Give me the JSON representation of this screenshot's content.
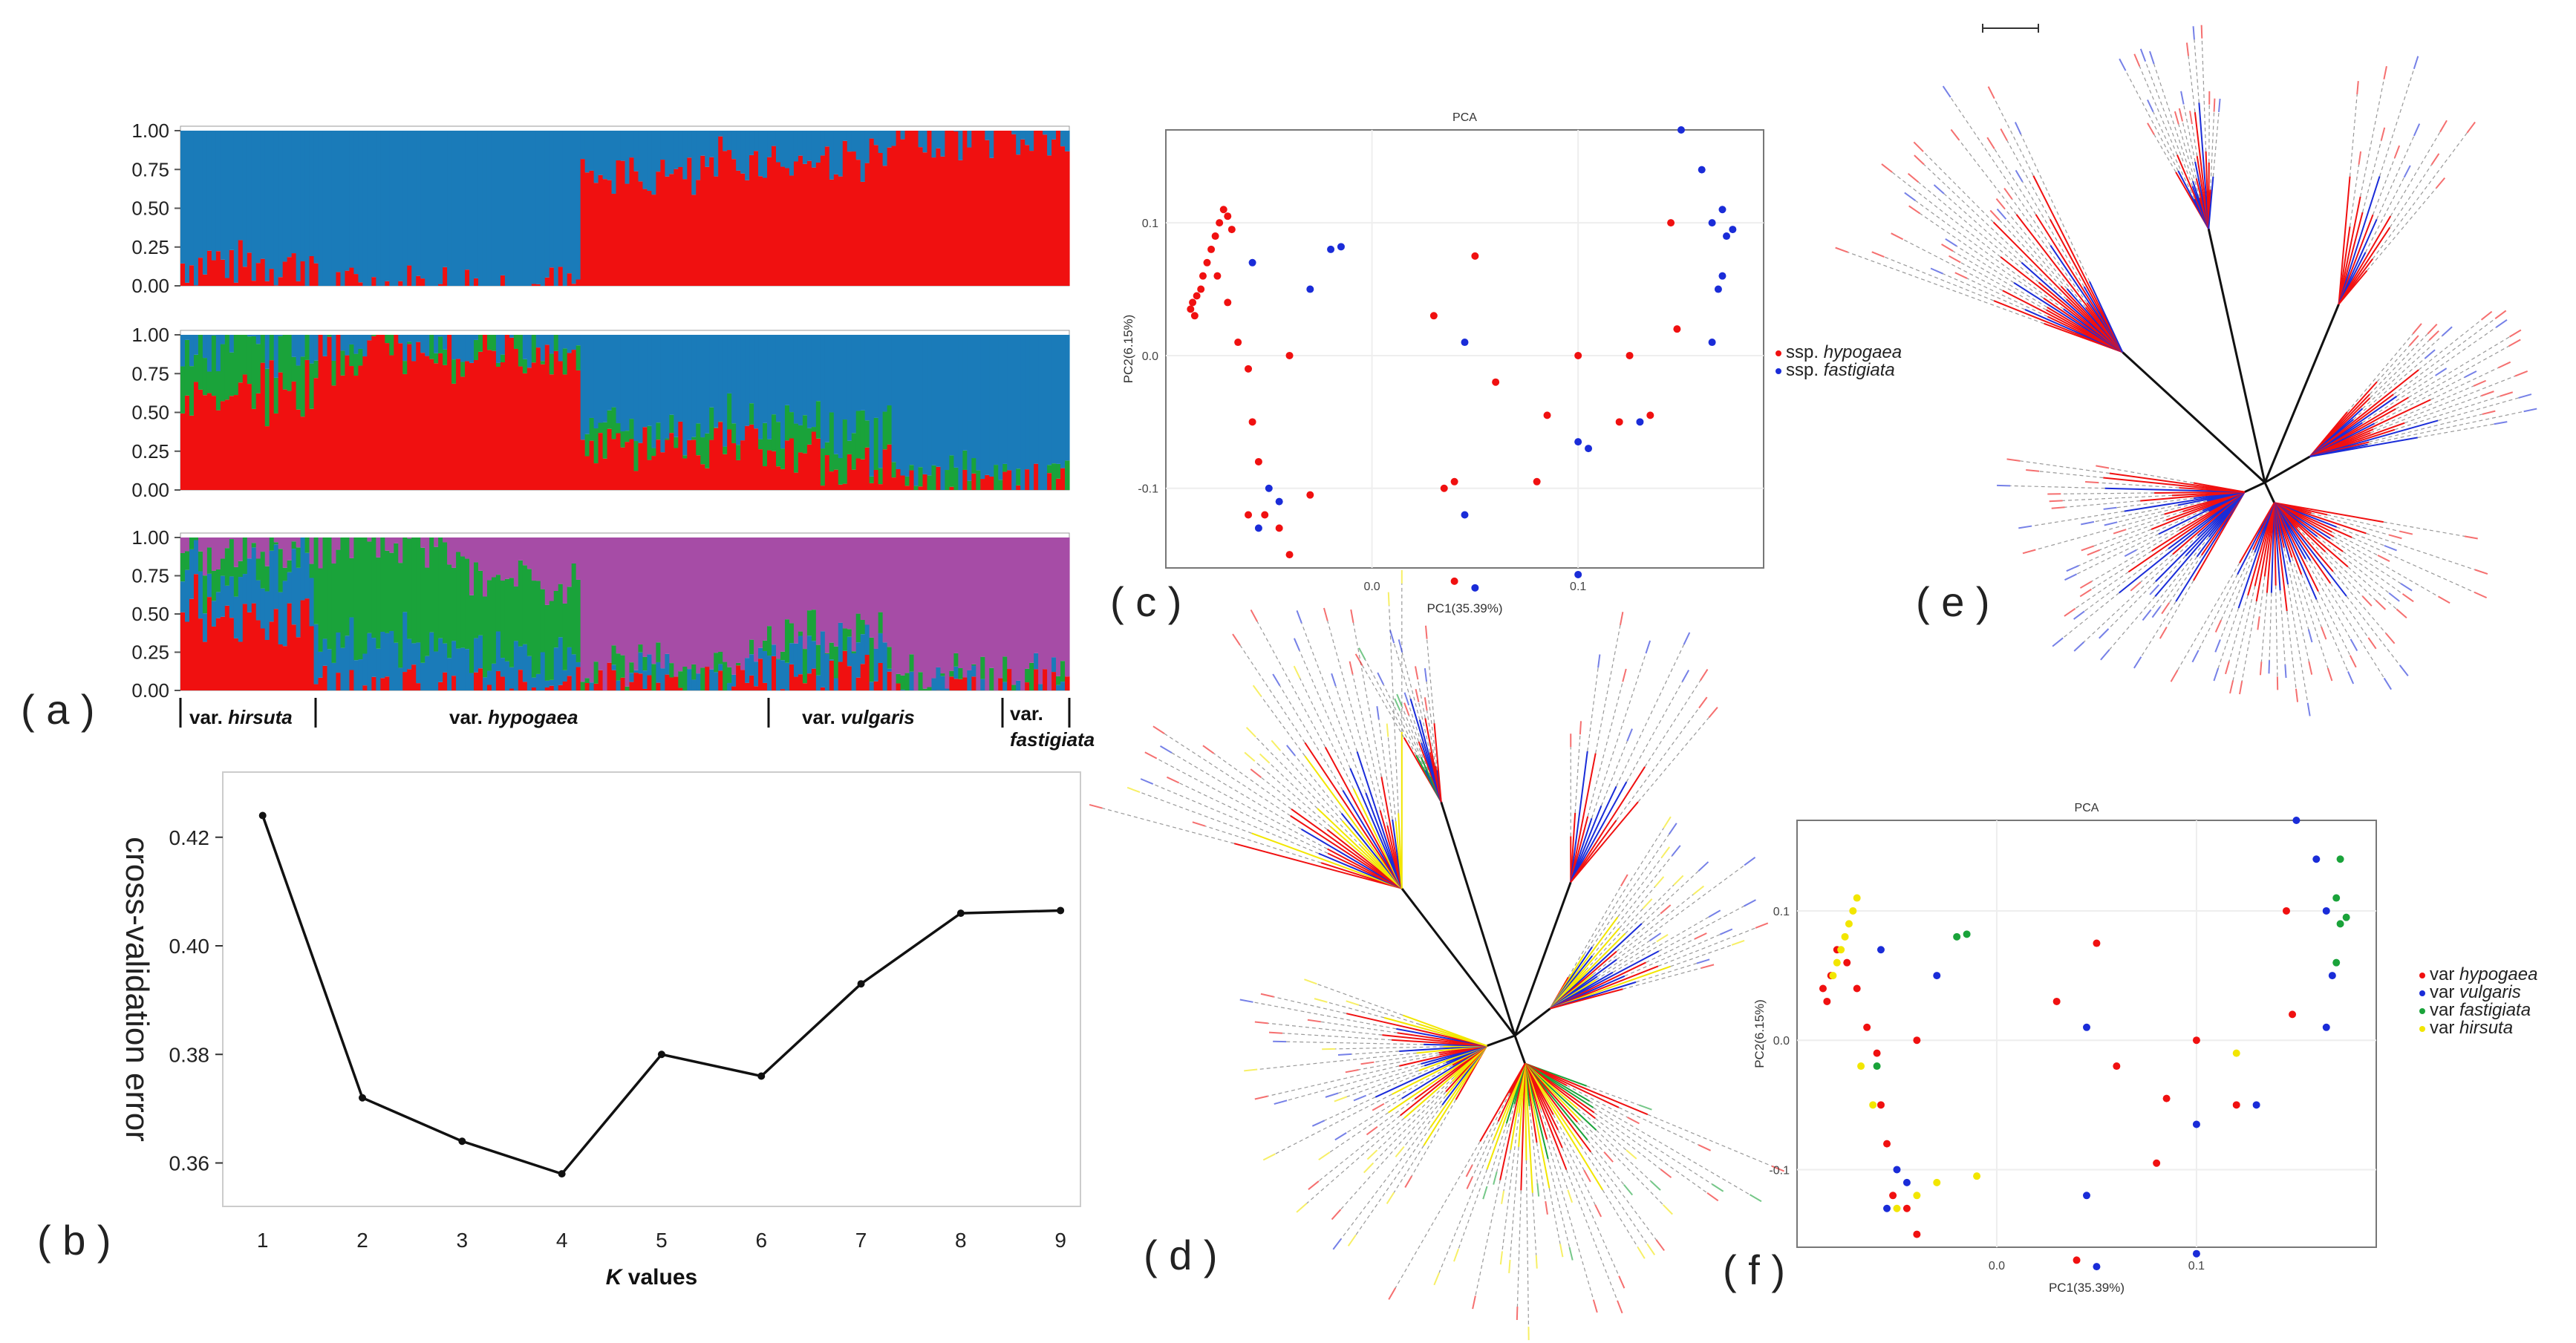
{
  "panel_labels": {
    "a": "( a )",
    "b": "( b )",
    "c": "( c )",
    "d": "( d )",
    "e": "( e )",
    "f": "( f )"
  },
  "colors": {
    "red": "#f01010",
    "blue": "#1a7bb9",
    "green": "#1aa33a",
    "purple": "#a64ca6",
    "yellow": "#f2e600",
    "dot_blue": "#1a2cd8"
  },
  "structure_groups": [
    {
      "prefix": "var. ",
      "name": "hirsuta"
    },
    {
      "prefix": "var. ",
      "name": "hypogaea"
    },
    {
      "prefix": "var. ",
      "name": "vulgaris"
    },
    {
      "prefix": "var.",
      "name": "fastigiata"
    }
  ],
  "chart_data": [
    {
      "type": "stacked_bar",
      "panel": "a",
      "k": 2,
      "yticks": [
        "0.00",
        "0.25",
        "0.50",
        "0.75",
        "1.00"
      ],
      "ylim": [
        0,
        1
      ],
      "components": [
        "red",
        "blue"
      ],
      "segments": [
        {
          "from": 0,
          "to": 30,
          "red": 0.15,
          "blue": 0.85
        },
        {
          "from": 30,
          "to": 90,
          "red": 0.0,
          "blue": 1.0
        },
        {
          "from": 90,
          "to": 120,
          "red": 0.7,
          "blue": 0.3
        },
        {
          "from": 120,
          "to": 160,
          "red": 0.8,
          "blue": 0.2
        },
        {
          "from": 160,
          "to": 200,
          "red": 0.95,
          "blue": 0.05
        }
      ]
    },
    {
      "type": "stacked_bar",
      "panel": "a",
      "k": 3,
      "yticks": [
        "0.00",
        "0.25",
        "0.50",
        "0.75",
        "1.00"
      ],
      "ylim": [
        0,
        1
      ],
      "components": [
        "red",
        "green",
        "blue"
      ],
      "segments": [
        {
          "from": 0,
          "to": 30,
          "red": 0.6,
          "green": 0.3,
          "blue": 0.1
        },
        {
          "from": 30,
          "to": 90,
          "red": 0.9,
          "green": 0.05,
          "blue": 0.05
        },
        {
          "from": 90,
          "to": 130,
          "red": 0.3,
          "green": 0.1,
          "blue": 0.6
        },
        {
          "from": 130,
          "to": 160,
          "red": 0.2,
          "green": 0.2,
          "blue": 0.6
        },
        {
          "from": 160,
          "to": 200,
          "red": 0.0,
          "green": 0.05,
          "blue": 0.95
        }
      ]
    },
    {
      "type": "stacked_bar",
      "panel": "a",
      "k": 4,
      "yticks": [
        "0.00",
        "0.25",
        "0.50",
        "0.75",
        "1.00"
      ],
      "ylim": [
        0,
        1
      ],
      "components": [
        "red",
        "blue",
        "green",
        "purple"
      ],
      "segments": [
        {
          "from": 0,
          "to": 30,
          "red": 0.45,
          "blue": 0.3,
          "green": 0.15,
          "purple": 0.1
        },
        {
          "from": 30,
          "to": 65,
          "red": 0.0,
          "blue": 0.3,
          "green": 0.65,
          "purple": 0.05
        },
        {
          "from": 65,
          "to": 90,
          "red": 0.0,
          "blue": 0.2,
          "green": 0.5,
          "purple": 0.3
        },
        {
          "from": 90,
          "to": 130,
          "red": 0.0,
          "blue": 0.05,
          "green": 0.05,
          "purple": 0.9
        },
        {
          "from": 130,
          "to": 160,
          "red": 0.1,
          "blue": 0.15,
          "green": 0.1,
          "purple": 0.65
        },
        {
          "from": 160,
          "to": 200,
          "red": 0.0,
          "blue": 0.0,
          "green": 0.02,
          "purple": 0.98
        }
      ]
    },
    {
      "type": "line",
      "panel": "b",
      "x": [
        1,
        2,
        3,
        4,
        5,
        6,
        7,
        8,
        9
      ],
      "y": [
        0.424,
        0.372,
        0.364,
        0.358,
        0.38,
        0.376,
        0.393,
        0.406,
        0.4065
      ],
      "xlim": [
        0.6,
        9.2
      ],
      "ylim": [
        0.352,
        0.432
      ],
      "xticks": [
        "1",
        "2",
        "3",
        "4",
        "5",
        "6",
        "7",
        "8",
        "9"
      ],
      "yticks": [
        {
          "v": 0.36,
          "label": "0.36"
        },
        {
          "v": 0.38,
          "label": "0.38"
        },
        {
          "v": 0.4,
          "label": "0.40"
        },
        {
          "v": 0.42,
          "label": "0.42"
        }
      ],
      "xlabel_italic": "K",
      "xlabel_rest": " values",
      "ylabel": "cross-validation error"
    },
    {
      "type": "scatter",
      "panel": "c",
      "title": "PCA",
      "xlabel": "PC1(35.39%)",
      "ylabel": "PC2(6.15%)",
      "xlim": [
        -0.1,
        0.19
      ],
      "ylim": [
        -0.16,
        0.17
      ],
      "xticks": [
        {
          "v": 0.0,
          "label": "0.0"
        },
        {
          "v": 0.1,
          "label": "0.1"
        }
      ],
      "yticks": [
        {
          "v": 0.1,
          "label": "0.1"
        },
        {
          "v": 0.0,
          "label": "0.0"
        },
        {
          "v": -0.1,
          "label": "-0.1"
        }
      ],
      "legend": [
        {
          "color": "red",
          "prefix": "ssp. ",
          "name": "hypogaea"
        },
        {
          "color": "dot_blue",
          "prefix": "ssp. ",
          "name": "fastigiata"
        }
      ],
      "series": [
        {
          "name": "ssp. hypogaea",
          "color": "red",
          "points": [
            [
              -0.087,
              0.04
            ],
            [
              -0.088,
              0.035
            ],
            [
              -0.086,
              0.03
            ],
            [
              -0.085,
              0.045
            ],
            [
              -0.083,
              0.05
            ],
            [
              -0.082,
              0.06
            ],
            [
              -0.08,
              0.07
            ],
            [
              -0.078,
              0.08
            ],
            [
              -0.076,
              0.09
            ],
            [
              -0.074,
              0.1
            ],
            [
              -0.072,
              0.11
            ],
            [
              -0.07,
              0.105
            ],
            [
              -0.068,
              0.095
            ],
            [
              -0.075,
              0.06
            ],
            [
              -0.07,
              0.04
            ],
            [
              -0.065,
              0.01
            ],
            [
              -0.06,
              -0.01
            ],
            [
              -0.058,
              -0.05
            ],
            [
              -0.055,
              -0.08
            ],
            [
              -0.06,
              -0.12
            ],
            [
              -0.052,
              -0.12
            ],
            [
              -0.045,
              -0.13
            ],
            [
              -0.04,
              -0.15
            ],
            [
              -0.03,
              -0.105
            ],
            [
              -0.04,
              0.0
            ],
            [
              0.03,
              0.03
            ],
            [
              0.05,
              0.075
            ],
            [
              0.06,
              -0.02
            ],
            [
              0.04,
              -0.17
            ],
            [
              0.08,
              -0.095
            ],
            [
              0.085,
              -0.045
            ],
            [
              0.1,
              0.0
            ],
            [
              0.12,
              -0.05
            ],
            [
              0.125,
              0.0
            ],
            [
              0.135,
              -0.045
            ],
            [
              0.145,
              0.1
            ],
            [
              0.148,
              0.02
            ],
            [
              0.035,
              -0.1
            ],
            [
              0.04,
              -0.095
            ]
          ]
        },
        {
          "name": "ssp. fastigiata",
          "color": "dot_blue",
          "points": [
            [
              -0.058,
              0.07
            ],
            [
              -0.055,
              -0.13
            ],
            [
              -0.05,
              -0.1
            ],
            [
              -0.045,
              -0.11
            ],
            [
              -0.03,
              0.05
            ],
            [
              -0.02,
              0.08
            ],
            [
              -0.015,
              0.082
            ],
            [
              0.045,
              -0.12
            ],
            [
              0.045,
              0.01
            ],
            [
              0.05,
              -0.175
            ],
            [
              0.1,
              -0.065
            ],
            [
              0.1,
              -0.165
            ],
            [
              0.105,
              -0.07
            ],
            [
              0.13,
              -0.05
            ],
            [
              0.15,
              0.17
            ],
            [
              0.16,
              0.14
            ],
            [
              0.165,
              0.1
            ],
            [
              0.17,
              0.11
            ],
            [
              0.172,
              0.09
            ],
            [
              0.168,
              0.05
            ],
            [
              0.165,
              0.01
            ],
            [
              0.17,
              0.06
            ],
            [
              0.175,
              0.095
            ]
          ]
        }
      ]
    },
    {
      "type": "tree",
      "panel": "d",
      "description_colors": [
        "red",
        "dot_blue",
        "green",
        "yellow"
      ]
    },
    {
      "type": "tree",
      "panel": "e",
      "description_colors": [
        "red",
        "dot_blue"
      ]
    },
    {
      "type": "scatter",
      "panel": "f",
      "title": "PCA",
      "xlabel": "PC1(35.39%)",
      "ylabel": "PC2(6.15%)",
      "xlim": [
        -0.1,
        0.19
      ],
      "ylim": [
        -0.16,
        0.17
      ],
      "xticks": [
        {
          "v": 0.0,
          "label": "0.0"
        },
        {
          "v": 0.1,
          "label": "0.1"
        }
      ],
      "yticks": [
        {
          "v": 0.1,
          "label": "0.1"
        },
        {
          "v": 0.0,
          "label": "0.0"
        },
        {
          "v": -0.1,
          "label": "-0.1"
        }
      ],
      "legend": [
        {
          "color": "red",
          "prefix": "var ",
          "name": "hypogaea"
        },
        {
          "color": "dot_blue",
          "prefix": "var ",
          "name": "vulgaris"
        },
        {
          "color": "green",
          "prefix": "var ",
          "name": "fastigiata"
        },
        {
          "color": "yellow",
          "prefix": "var ",
          "name": "hirsuta"
        }
      ],
      "series": [
        {
          "name": "var hypogaea",
          "color": "red",
          "points": [
            [
              -0.087,
              0.04
            ],
            [
              -0.085,
              0.03
            ],
            [
              -0.083,
              0.05
            ],
            [
              -0.08,
              0.07
            ],
            [
              -0.075,
              0.06
            ],
            [
              -0.07,
              0.04
            ],
            [
              -0.065,
              0.01
            ],
            [
              -0.06,
              -0.01
            ],
            [
              -0.058,
              -0.05
            ],
            [
              -0.055,
              -0.08
            ],
            [
              -0.052,
              -0.12
            ],
            [
              -0.045,
              -0.13
            ],
            [
              -0.04,
              -0.15
            ],
            [
              -0.04,
              0.0
            ],
            [
              0.03,
              0.03
            ],
            [
              0.05,
              0.075
            ],
            [
              0.06,
              -0.02
            ],
            [
              0.04,
              -0.17
            ],
            [
              0.08,
              -0.095
            ],
            [
              0.085,
              -0.045
            ],
            [
              0.1,
              0.0
            ],
            [
              0.12,
              -0.05
            ],
            [
              0.145,
              0.1
            ],
            [
              0.148,
              0.02
            ]
          ]
        },
        {
          "name": "var vulgaris",
          "color": "dot_blue",
          "points": [
            [
              -0.058,
              0.07
            ],
            [
              -0.055,
              -0.13
            ],
            [
              -0.05,
              -0.1
            ],
            [
              -0.045,
              -0.11
            ],
            [
              -0.03,
              0.05
            ],
            [
              0.045,
              -0.12
            ],
            [
              0.045,
              0.01
            ],
            [
              0.05,
              -0.175
            ],
            [
              0.1,
              -0.065
            ],
            [
              0.1,
              -0.165
            ],
            [
              0.13,
              -0.05
            ],
            [
              0.15,
              0.17
            ],
            [
              0.16,
              0.14
            ],
            [
              0.165,
              0.1
            ],
            [
              0.168,
              0.05
            ],
            [
              0.165,
              0.01
            ]
          ]
        },
        {
          "name": "var fastigiata",
          "color": "green",
          "points": [
            [
              -0.02,
              0.08
            ],
            [
              -0.015,
              0.082
            ],
            [
              0.17,
              0.11
            ],
            [
              0.172,
              0.09
            ],
            [
              0.175,
              0.095
            ],
            [
              0.17,
              0.06
            ],
            [
              0.172,
              0.14
            ],
            [
              -0.06,
              -0.02
            ]
          ]
        },
        {
          "name": "var hirsuta",
          "color": "yellow",
          "points": [
            [
              -0.07,
              0.11
            ],
            [
              -0.072,
              0.1
            ],
            [
              -0.074,
              0.09
            ],
            [
              -0.076,
              0.08
            ],
            [
              -0.078,
              0.07
            ],
            [
              -0.08,
              0.06
            ],
            [
              -0.082,
              0.05
            ],
            [
              -0.068,
              -0.02
            ],
            [
              -0.062,
              -0.05
            ],
            [
              -0.05,
              -0.13
            ],
            [
              -0.04,
              -0.12
            ],
            [
              -0.03,
              -0.11
            ],
            [
              -0.01,
              -0.105
            ],
            [
              0.12,
              -0.01
            ]
          ]
        }
      ]
    }
  ]
}
